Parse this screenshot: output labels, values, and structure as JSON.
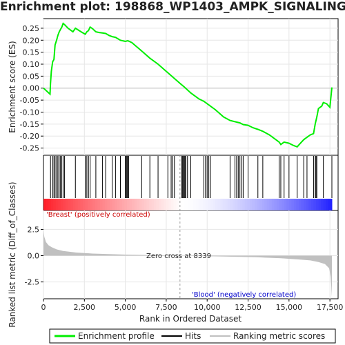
{
  "title": "Enrichment plot: 198868_WP1403_AMPK_SIGNALING",
  "colors": {
    "profile": "#00ee00",
    "hits": "#000000",
    "metric_fill": "#c0c0c0",
    "positive_label": "#cc0000",
    "negative_label": "#0000cc",
    "zero_line": "#999999"
  },
  "chart_data": [
    {
      "type": "line",
      "panel": "enrichment_profile",
      "ylabel": "Enrichment score (ES)",
      "ylim": [
        -0.28,
        0.29
      ],
      "xlim": [
        0,
        18000
      ],
      "yticks": [
        "0.25",
        "0.20",
        "0.15",
        "0.10",
        "0.05",
        "0.00",
        "-0.05",
        "-0.10",
        "-0.15",
        "-0.20",
        "-0.25"
      ],
      "ytick_values": [
        0.25,
        0.2,
        0.15,
        0.1,
        0.05,
        0.0,
        -0.05,
        -0.1,
        -0.15,
        -0.2,
        -0.25
      ],
      "series": [
        {
          "x": [
            0,
            400,
            430,
            480,
            560,
            640,
            710,
            800,
            880,
            960,
            1040,
            1120,
            1200,
            1290,
            1500,
            1800,
            1950,
            2300,
            2550,
            2650,
            2750,
            2850,
            3000,
            3200,
            3400,
            3600,
            3800,
            4000,
            4200,
            4400,
            4700,
            5000,
            5150,
            5400,
            6000,
            6500,
            7000,
            7500,
            8000,
            8339,
            8600,
            9000,
            9500,
            9800,
            10200,
            10500,
            11000,
            11400,
            11700,
            12000,
            12200,
            12500,
            12800,
            13100,
            13400,
            13800,
            14100,
            14400,
            14500,
            14700,
            15000,
            15300,
            15500,
            15700,
            15900,
            16100,
            16300,
            16500,
            16600,
            16700,
            16800,
            17000,
            17100,
            17300,
            17500,
            17620
          ],
          "y": [
            0.0,
            -0.025,
            0.02,
            0.07,
            0.11,
            0.12,
            0.18,
            0.2,
            0.22,
            0.235,
            0.245,
            0.255,
            0.27,
            0.265,
            0.25,
            0.235,
            0.25,
            0.235,
            0.225,
            0.235,
            0.24,
            0.255,
            0.248,
            0.235,
            0.232,
            0.23,
            0.228,
            0.22,
            0.215,
            0.212,
            0.2,
            0.195,
            0.198,
            0.19,
            0.155,
            0.125,
            0.1,
            0.07,
            0.04,
            0.02,
            0.005,
            -0.02,
            -0.045,
            -0.055,
            -0.075,
            -0.09,
            -0.12,
            -0.135,
            -0.14,
            -0.145,
            -0.152,
            -0.155,
            -0.165,
            -0.172,
            -0.18,
            -0.195,
            -0.21,
            -0.225,
            -0.235,
            -0.225,
            -0.23,
            -0.24,
            -0.245,
            -0.23,
            -0.215,
            -0.205,
            -0.195,
            -0.19,
            -0.15,
            -0.12,
            -0.085,
            -0.075,
            -0.06,
            -0.065,
            -0.08,
            0.003
          ]
        }
      ]
    },
    {
      "type": "scatter",
      "panel": "hits",
      "xlim": [
        0,
        18000
      ],
      "x": [
        430,
        560,
        640,
        710,
        800,
        880,
        960,
        1040,
        1120,
        1200,
        1290,
        1950,
        2550,
        2650,
        2750,
        2850,
        3200,
        3600,
        3800,
        4200,
        4400,
        4700,
        5000,
        5050,
        5100,
        5150,
        5200,
        6000,
        6500,
        7000,
        7600,
        7800,
        7900,
        8000,
        8450,
        8500,
        8550,
        8600,
        8650,
        8700,
        8800,
        9000,
        9800,
        9900,
        10000,
        10100,
        10200,
        11400,
        11700,
        11800,
        11900,
        12000,
        12100,
        12200,
        12500,
        13100,
        13400,
        14400,
        14500,
        14700,
        15000,
        15500,
        15900,
        16100,
        16500,
        16600,
        16650,
        16700,
        17100,
        17620
      ]
    },
    {
      "type": "area",
      "panel": "ranked_metric",
      "ylabel": "Ranked list metric (Diff_of_Classes)",
      "xlabel": "Rank in Ordered Dataset",
      "ylim": [
        -4.1,
        4.3
      ],
      "xlim": [
        0,
        18000
      ],
      "xticks": [
        "0",
        "2,500",
        "5,000",
        "7,500",
        "10,000",
        "12,500",
        "15,000",
        "17,500"
      ],
      "xtick_values": [
        0,
        2500,
        5000,
        7500,
        10000,
        12500,
        15000,
        17500
      ],
      "yticks": [
        "2.5",
        "0.0",
        "-2.5"
      ],
      "ytick_values": [
        2.5,
        0.0,
        -2.5
      ],
      "x": [
        0,
        50,
        150,
        300,
        500,
        800,
        1200,
        2000,
        3000,
        5000,
        8339,
        11000,
        13000,
        14500,
        15500,
        16300,
        16800,
        17200,
        17450,
        17550,
        17620
      ],
      "y": [
        2.4,
        1.8,
        1.3,
        1.0,
        0.8,
        0.6,
        0.45,
        0.3,
        0.2,
        0.1,
        0.0,
        -0.08,
        -0.15,
        -0.25,
        -0.35,
        -0.45,
        -0.6,
        -0.8,
        -1.2,
        -2.0,
        -3.9
      ]
    }
  ],
  "annotations": {
    "zero_cross": "Zero cross at 8339",
    "zero_cross_rank": 8339,
    "positive_label": "'Breast' (positively correlated)",
    "negative_label": "'Blood' (negatively correlated)"
  },
  "legend": {
    "items": [
      {
        "label": "Enrichment profile",
        "color": "#00ee00"
      },
      {
        "label": "Hits",
        "color": "#000000"
      },
      {
        "label": "Ranking metric scores",
        "color": "#c0c0c0"
      }
    ]
  }
}
